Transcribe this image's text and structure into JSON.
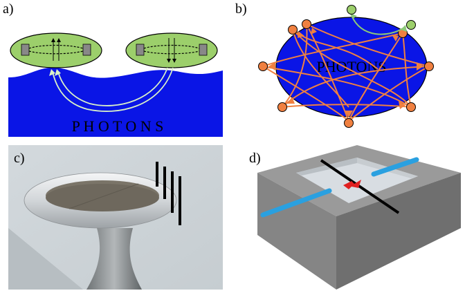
{
  "panels": {
    "a": {
      "label": "a)",
      "photons_text": "P H O T O N S"
    },
    "b": {
      "label": "b)",
      "photons_text": "PHOTONS"
    },
    "c": {
      "label": "c)"
    },
    "d": {
      "label": "d)"
    }
  },
  "colors": {
    "photon_bath": "#0a15e6",
    "qubit_fill": "#9ccf6b",
    "arrow_orange": "#f08040",
    "arrow_green": "#8cc878",
    "waveguide": "#2aa0e0",
    "silica": "#d8dde2",
    "block_grey": "#8a8a8a"
  }
}
